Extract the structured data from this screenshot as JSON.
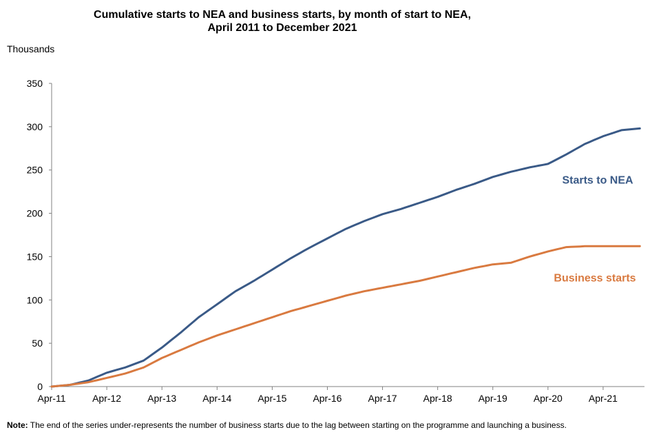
{
  "chart_data": {
    "type": "line",
    "title_line1": "Cumulative starts to NEA and business starts, by month of start to NEA,",
    "title_line2": "April 2011 to December 2021",
    "ylabel": "Thousands",
    "xlabel": "",
    "ylim": [
      0,
      350
    ],
    "yticks": [
      "0",
      "50",
      "100",
      "150",
      "200",
      "250",
      "300",
      "350"
    ],
    "x_categories": [
      "Apr-11",
      "Apr-12",
      "Apr-13",
      "Apr-14",
      "Apr-15",
      "Apr-16",
      "Apr-17",
      "Apr-18",
      "Apr-19",
      "Apr-20",
      "Apr-21"
    ],
    "x_start": "Apr-11",
    "x_end": "Dec-21",
    "months_count": 129,
    "grid": false,
    "legend": "inline labels at series end",
    "series": [
      {
        "name": "Starts to NEA",
        "color": "#3a5a87",
        "label_position": "right of line, above",
        "anchors": [
          [
            0,
            0
          ],
          [
            4,
            2
          ],
          [
            8,
            7
          ],
          [
            12,
            16
          ],
          [
            16,
            22
          ],
          [
            20,
            30
          ],
          [
            24,
            45
          ],
          [
            28,
            62
          ],
          [
            32,
            80
          ],
          [
            36,
            95
          ],
          [
            40,
            110
          ],
          [
            44,
            122
          ],
          [
            48,
            135
          ],
          [
            52,
            148
          ],
          [
            56,
            160
          ],
          [
            60,
            171
          ],
          [
            64,
            182
          ],
          [
            68,
            191
          ],
          [
            72,
            199
          ],
          [
            76,
            205
          ],
          [
            80,
            212
          ],
          [
            84,
            219
          ],
          [
            88,
            227
          ],
          [
            92,
            234
          ],
          [
            96,
            242
          ],
          [
            100,
            248
          ],
          [
            104,
            253
          ],
          [
            108,
            257
          ],
          [
            112,
            268
          ],
          [
            116,
            280
          ],
          [
            120,
            289
          ],
          [
            124,
            296
          ],
          [
            128,
            298
          ]
        ]
      },
      {
        "name": "Business starts",
        "color": "#d97a40",
        "label_position": "right of line, below",
        "anchors": [
          [
            0,
            0
          ],
          [
            4,
            2
          ],
          [
            8,
            5
          ],
          [
            12,
            10
          ],
          [
            16,
            15
          ],
          [
            20,
            22
          ],
          [
            24,
            33
          ],
          [
            28,
            42
          ],
          [
            32,
            51
          ],
          [
            36,
            59
          ],
          [
            40,
            66
          ],
          [
            44,
            73
          ],
          [
            48,
            80
          ],
          [
            52,
            87
          ],
          [
            56,
            93
          ],
          [
            60,
            99
          ],
          [
            64,
            105
          ],
          [
            68,
            110
          ],
          [
            72,
            114
          ],
          [
            76,
            118
          ],
          [
            80,
            122
          ],
          [
            84,
            127
          ],
          [
            88,
            132
          ],
          [
            92,
            137
          ],
          [
            96,
            141
          ],
          [
            100,
            143
          ],
          [
            104,
            150
          ],
          [
            108,
            156
          ],
          [
            112,
            161
          ],
          [
            116,
            162
          ],
          [
            120,
            162
          ],
          [
            124,
            162
          ],
          [
            128,
            162
          ]
        ]
      }
    ]
  },
  "note": {
    "label": "Note:",
    "text": " The end of the series under-represents  the number of business starts due to the lag between  starting on the programme  and launching  a business."
  }
}
